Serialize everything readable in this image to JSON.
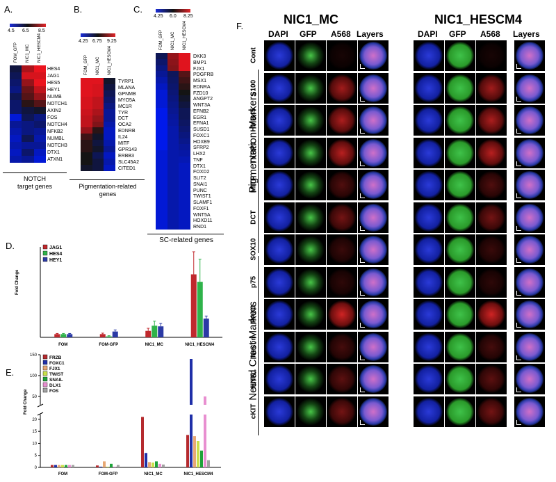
{
  "panelA": {
    "letter": "A.",
    "scale": [
      "4.5",
      "6.5",
      "8.5"
    ],
    "columns": [
      "FOM_GFP",
      "NIC1_MC",
      "NIC1_HESCM4"
    ],
    "genes": [
      "HES4",
      "JAG1",
      "HES5",
      "HEY1",
      "NUMB",
      "NOTCH1",
      "AXIN2",
      "FOS",
      "NOTCH4",
      "NFKB2",
      "NUMBL",
      "NOTCH3",
      "DTX1",
      "ATXN1"
    ],
    "caption_line1": "NOTCH",
    "caption_line2": "target genes"
  },
  "panelB": {
    "letter": "B.",
    "scale": [
      "4.25",
      "6.75",
      "9.25"
    ],
    "columns": [
      "FOM_GFP",
      "NIC1_MC",
      "NIC1_HESCM4"
    ],
    "genes": [
      "TYRP1",
      "MLANA",
      "GPNMB",
      "MYO5A",
      "MC1R",
      "TYR",
      "DCT",
      "OCA2",
      "EDNRB",
      "IL24",
      "MITF",
      "GPR143",
      "ERBB3",
      "SLC45A2",
      "CITED1"
    ],
    "caption_line1": "Pigmentation-related",
    "caption_line2": "genes"
  },
  "panelC": {
    "letter": "C.",
    "scale": [
      "4.25",
      "6.0",
      "8.25"
    ],
    "columns": [
      "FOM_GFP",
      "NIC1_MC",
      "NIC1_HESCM4"
    ],
    "genes": [
      "DKK3",
      "BMP1",
      "FJX1",
      "PDGFRB",
      "MSX1",
      "EDNRA",
      "FZD10",
      "ANGPT2",
      "WNT3A",
      "EFNB2",
      "EGR1",
      "EFNA1",
      "SUSD1",
      "FOXC1",
      "HOXB9",
      "SFRP2",
      "LHX2",
      "TNF",
      "DTX1",
      "FOXD2",
      "SLIT2",
      "SNAI1",
      "PUNC",
      "TWIST1",
      "SLAMF1",
      "FOXF1",
      "WNT5A",
      "HOXD11",
      "RND1"
    ],
    "caption": "SC-related genes"
  },
  "panelD": {
    "letter": "D.",
    "ylabel": "Fold Change",
    "legend": [
      "JAG1",
      "HES4",
      "HEY1"
    ],
    "colors": [
      "#c0282d",
      "#2fb34a",
      "#2b3aa5"
    ]
  },
  "panelE": {
    "letter": "E.",
    "ylabel": "Fold Change",
    "legend": [
      "FRZB",
      "FOXC1",
      "FJX1",
      "TWIST",
      "SNAIL",
      "DLX1",
      "FOS"
    ],
    "colors": [
      "#b52a2e",
      "#1f2fa8",
      "#e7a874",
      "#c9e04a",
      "#1ea33a",
      "#e88fd0",
      "#a3a3a3"
    ],
    "upper_ticks": [
      "150",
      "100",
      "50"
    ],
    "lower_ticks": [
      "20",
      "15",
      "10",
      "5",
      "0"
    ]
  },
  "panelF": {
    "letter": "F.",
    "title_left": "NIC1_MC",
    "title_right": "NIC1_HESCM4",
    "channels": [
      "DAPI",
      "GFP",
      "A568",
      "Layers"
    ],
    "rows": [
      "Cont",
      "S100",
      "HMB45",
      "TYRP1",
      "MITF",
      "DCT",
      "SOX10",
      "p75",
      "PAX3",
      "Nestin",
      "HNK1",
      "cKIT"
    ],
    "group_pigmentation": "Pigmentation Markers",
    "group_neural": "Neural Crest Markers"
  },
  "chart_data": [
    {
      "type": "bar",
      "panel": "D",
      "categories": [
        "FOM",
        "FOM-GFP",
        "NIC1_MC",
        "NIC1_HESCM4"
      ],
      "ylabel": "Fold Change",
      "series": [
        {
          "name": "JAG1",
          "values": [
            1.0,
            1.0,
            2.0,
            19.5
          ],
          "errors": [
            0.2,
            0.3,
            0.8,
            7.0
          ]
        },
        {
          "name": "HES4",
          "values": [
            1.0,
            0.3,
            3.6,
            17.2
          ],
          "errors": [
            0.2,
            0.2,
            1.4,
            7.0
          ]
        },
        {
          "name": "HEY1",
          "values": [
            1.0,
            1.8,
            3.4,
            5.8
          ],
          "errors": [
            0.2,
            0.5,
            0.9,
            0.8
          ]
        }
      ],
      "ylim": [
        0,
        28
      ]
    },
    {
      "type": "bar",
      "panel": "E",
      "categories": [
        "FOM",
        "FOM-GFP",
        "NIC1_MC",
        "NIC1_HESCM4"
      ],
      "ylabel": "Fold Change",
      "broken_axis": true,
      "series": [
        {
          "name": "FRZB",
          "values": [
            1.0,
            0.8,
            21.0,
            13.5
          ]
        },
        {
          "name": "FOXC1",
          "values": [
            1.0,
            0.3,
            6.0,
            140.0
          ]
        },
        {
          "name": "FJX1",
          "values": [
            1.0,
            2.5,
            2.2,
            13.0
          ]
        },
        {
          "name": "TWIST",
          "values": [
            1.0,
            0.3,
            2.0,
            11.0
          ]
        },
        {
          "name": "SNAIL",
          "values": [
            1.0,
            1.5,
            2.5,
            7.0
          ]
        },
        {
          "name": "DLX1",
          "values": [
            1.0,
            0.3,
            1.5,
            50.0
          ]
        },
        {
          "name": "FOS",
          "values": [
            1.0,
            1.0,
            1.2,
            3.0
          ]
        }
      ]
    }
  ]
}
